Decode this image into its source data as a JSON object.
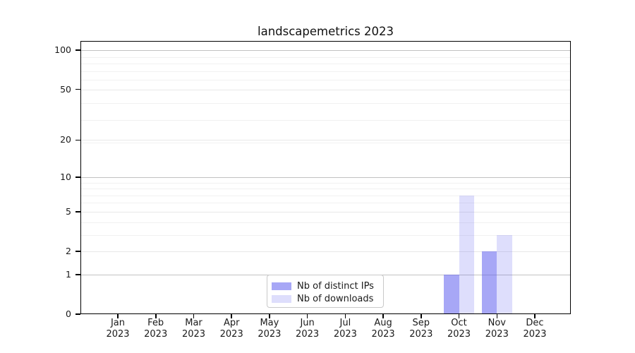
{
  "chart_data": {
    "type": "bar",
    "title": "landscapemetrics 2023",
    "categories": [
      "Jan 2023",
      "Feb 2023",
      "Mar 2023",
      "Apr 2023",
      "May 2023",
      "Jun 2023",
      "Jul 2023",
      "Aug 2023",
      "Sep 2023",
      "Oct 2023",
      "Nov 2023",
      "Dec 2023"
    ],
    "series": [
      {
        "name": "Nb of distinct IPs",
        "color": "rgba(92,92,238,0.54)",
        "values": [
          0,
          0,
          0,
          0,
          0,
          0,
          0,
          0,
          0,
          1,
          2,
          0
        ]
      },
      {
        "name": "Nb of downloads",
        "color": "rgba(92,92,238,0.20)",
        "values": [
          0,
          0,
          0,
          0,
          0,
          0,
          0,
          0,
          0,
          7,
          3,
          0
        ]
      }
    ],
    "xlabel": "",
    "ylabel": "",
    "y_ticks": [
      0,
      1,
      2,
      5,
      10,
      20,
      50,
      100
    ],
    "y_scale": "log10(value+1)",
    "ylim": [
      0,
      117
    ],
    "grid": "on",
    "legend_position": "lower center"
  },
  "axes": {
    "x_tick_months": [
      "Jan",
      "Feb",
      "Mar",
      "Apr",
      "May",
      "Jun",
      "Jul",
      "Aug",
      "Sep",
      "Oct",
      "Nov",
      "Dec"
    ],
    "x_tick_year": "2023"
  },
  "style_colors": {
    "distinct_ips_composite": "#a6a6f6",
    "downloads_composite": "#dcdcf9",
    "gridline_decade": "#c2c2c2",
    "gridline_labeled": "#e8e8e8",
    "gridline_minor": "#f1f1f1",
    "spine": "#000000",
    "legend_border": "#c9c9c9",
    "text": "#1a1a1a"
  }
}
